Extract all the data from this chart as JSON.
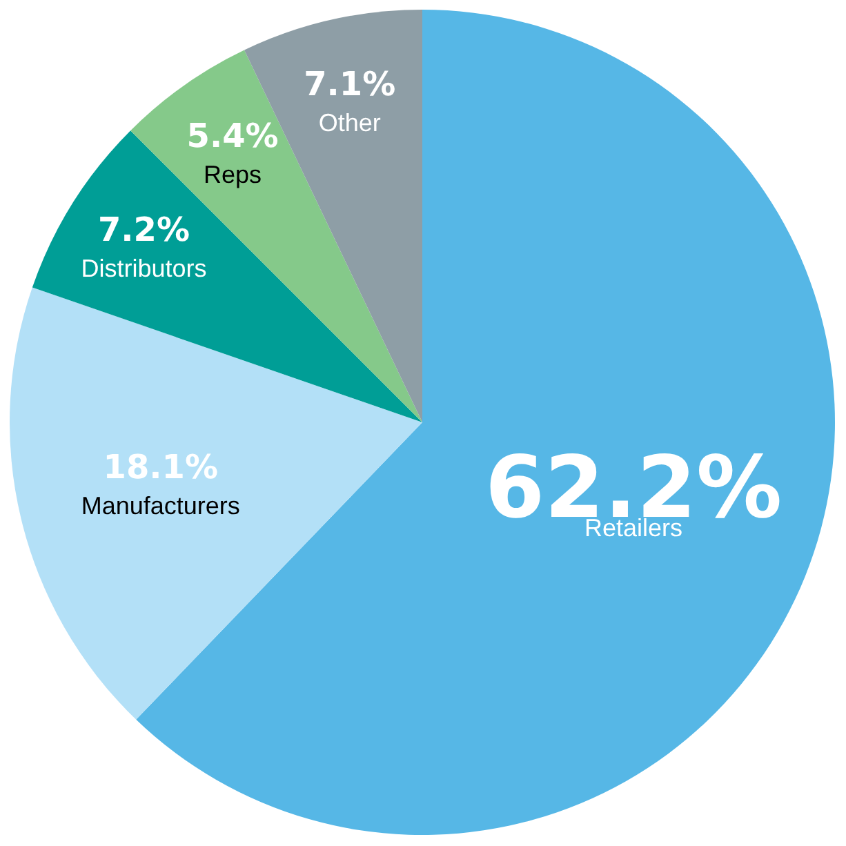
{
  "chart_data": {
    "type": "pie",
    "categories": [
      "Retailers",
      "Manufacturers",
      "Distributors",
      "Reps",
      "Other"
    ],
    "values": [
      62.2,
      18.1,
      7.2,
      5.4,
      7.1
    ],
    "colors": [
      "#56b7e6",
      "#b3e0f7",
      "#009e96",
      "#85c98a",
      "#8e9ea6"
    ],
    "value_labels": [
      "62.2%",
      "18.1%",
      "7.2%",
      "5.4%",
      "7.1%"
    ],
    "legend": false
  }
}
